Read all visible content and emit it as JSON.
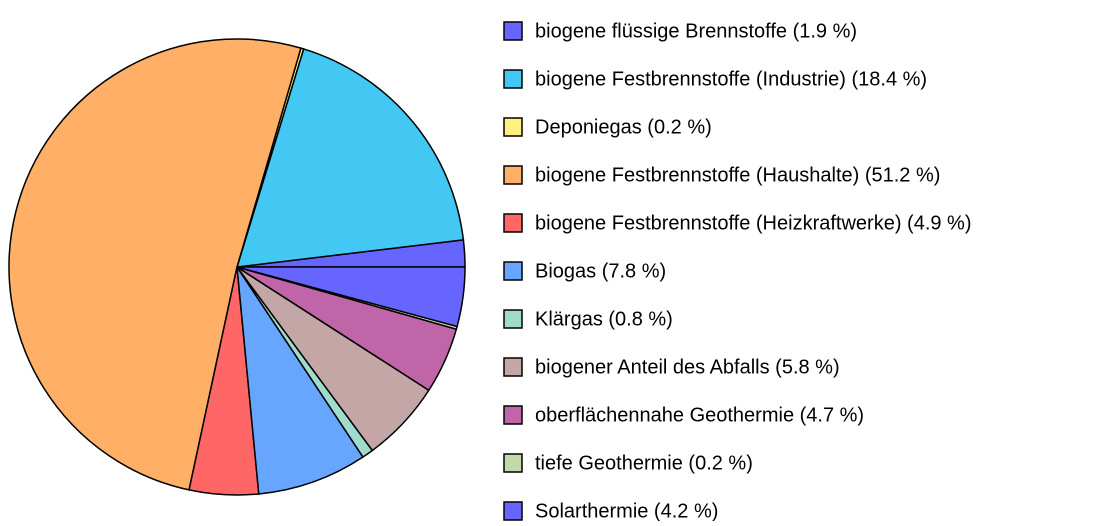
{
  "chart_data": {
    "type": "pie",
    "categories": [
      "biogene flüssige Brennstoffe (1.9 %)",
      "biogene Festbrennstoffe (Industrie) (18.4 %)",
      "Deponiegas (0.2 %)",
      "biogene Festbrennstoffe (Haushalte) (51.2 %)",
      "biogene Festbrennstoffe (Heizkraftwerke) (4.9 %)",
      "Biogas (7.8 %)",
      "Klärgas (0.8 %)",
      "biogener Anteil des Abfalls (5.8 %)",
      "oberflächennahe Geothermie (4.7 %)",
      "tiefe Geothermie (0.2 %)",
      "Solarthermie  (4.2 %)"
    ],
    "values": [
      1.9,
      18.4,
      0.2,
      51.2,
      4.9,
      7.8,
      0.8,
      5.8,
      4.7,
      0.2,
      4.2
    ],
    "colors": [
      "#6666ff",
      "#42c8f2",
      "#fff080",
      "#ffb066",
      "#ff6666",
      "#66a6ff",
      "#a0dccc",
      "#c4a6a6",
      "#c066a8",
      "#c4d8ac",
      "#6666ff"
    ]
  }
}
